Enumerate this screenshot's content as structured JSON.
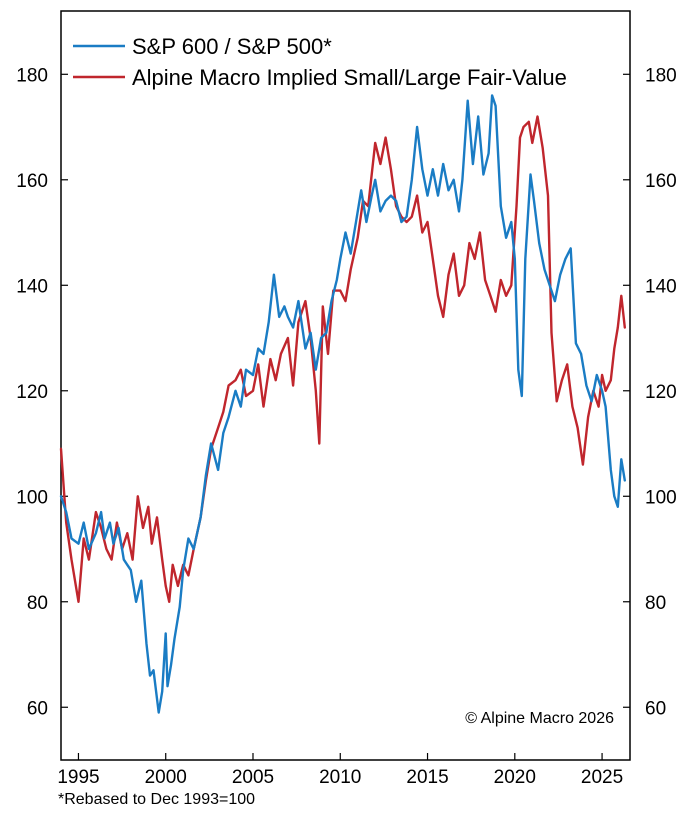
{
  "chart_data": {
    "type": "line",
    "title": "",
    "xlabel": "",
    "ylabel": "",
    "xlim": [
      1994.0,
      2026.6
    ],
    "ylim": [
      50,
      192
    ],
    "x_ticks": [
      1995,
      2000,
      2005,
      2010,
      2015,
      2020,
      2025
    ],
    "y_ticks": [
      60,
      80,
      100,
      120,
      140,
      160,
      180
    ],
    "y_axis_both_sides": true,
    "grid": false,
    "legend_position": "top-left",
    "series": [
      {
        "name": "S&P 600 / S&P 500*",
        "color": "#1a7cc4",
        "x": [
          1994.0,
          1994.3,
          1994.6,
          1995.0,
          1995.3,
          1995.6,
          1996.0,
          1996.3,
          1996.5,
          1996.8,
          1997.0,
          1997.3,
          1997.6,
          1998.0,
          1998.3,
          1998.6,
          1998.9,
          1999.1,
          1999.3,
          1999.6,
          1999.8,
          2000.0,
          2000.1,
          2000.3,
          2000.5,
          2000.8,
          2001.0,
          2001.3,
          2001.6,
          2002.0,
          2002.3,
          2002.6,
          2003.0,
          2003.3,
          2003.6,
          2004.0,
          2004.3,
          2004.6,
          2005.0,
          2005.3,
          2005.6,
          2005.9,
          2006.2,
          2006.5,
          2006.8,
          2007.0,
          2007.3,
          2007.6,
          2008.0,
          2008.3,
          2008.6,
          2008.9,
          2009.2,
          2009.5,
          2009.8,
          2010.0,
          2010.3,
          2010.6,
          2010.9,
          2011.2,
          2011.5,
          2011.8,
          2012.0,
          2012.3,
          2012.6,
          2012.9,
          2013.2,
          2013.5,
          2013.8,
          2014.1,
          2014.4,
          2014.7,
          2015.0,
          2015.3,
          2015.6,
          2015.9,
          2016.2,
          2016.5,
          2016.8,
          2017.0,
          2017.3,
          2017.6,
          2017.9,
          2018.2,
          2018.5,
          2018.7,
          2018.9,
          2019.2,
          2019.5,
          2019.8,
          2020.0,
          2020.2,
          2020.4,
          2020.6,
          2020.9,
          2021.1,
          2021.4,
          2021.7,
          2022.0,
          2022.3,
          2022.6,
          2022.9,
          2023.2,
          2023.5,
          2023.8,
          2024.1,
          2024.4,
          2024.7,
          2025.0,
          2025.2,
          2025.5,
          2025.7,
          2025.9,
          2026.1,
          2026.3
        ],
        "y": [
          100,
          97,
          92,
          91,
          95,
          90,
          93,
          97,
          92,
          95,
          91,
          94,
          88,
          86,
          80,
          84,
          72,
          66,
          67,
          59,
          63,
          74,
          64,
          68,
          73,
          79,
          86,
          92,
          90,
          96,
          104,
          110,
          105,
          112,
          115,
          120,
          117,
          124,
          123,
          128,
          127,
          133,
          142,
          134,
          136,
          134,
          132,
          137,
          128,
          131,
          124,
          130,
          131,
          137,
          141,
          145,
          150,
          146,
          152,
          158,
          152,
          157,
          160,
          154,
          156,
          157,
          156,
          152,
          153,
          160,
          170,
          162,
          157,
          162,
          157,
          163,
          158,
          160,
          154,
          160,
          175,
          163,
          172,
          161,
          165,
          176,
          174,
          155,
          149,
          152,
          145,
          124,
          119,
          145,
          161,
          156,
          148,
          143,
          140,
          137,
          142,
          145,
          147,
          129,
          127,
          121,
          118,
          123,
          120,
          117,
          105,
          100,
          98,
          107,
          103
        ]
      },
      {
        "name": "Alpine Macro Implied Small/Large Fair-Value",
        "color": "#c0262d",
        "x": [
          1994.0,
          1994.3,
          1994.6,
          1995.0,
          1995.3,
          1995.6,
          1996.0,
          1996.3,
          1996.6,
          1996.9,
          1997.2,
          1997.5,
          1997.8,
          1998.1,
          1998.4,
          1998.7,
          1999.0,
          1999.2,
          1999.5,
          1999.8,
          2000.0,
          2000.2,
          2000.4,
          2000.7,
          2001.0,
          2001.3,
          2001.6,
          2002.0,
          2002.3,
          2002.6,
          2003.0,
          2003.3,
          2003.6,
          2004.0,
          2004.3,
          2004.6,
          2005.0,
          2005.3,
          2005.6,
          2006.0,
          2006.3,
          2006.6,
          2007.0,
          2007.3,
          2007.6,
          2008.0,
          2008.3,
          2008.6,
          2008.8,
          2009.0,
          2009.3,
          2009.6,
          2010.0,
          2010.3,
          2010.6,
          2011.0,
          2011.3,
          2011.6,
          2012.0,
          2012.3,
          2012.6,
          2012.9,
          2013.2,
          2013.5,
          2013.8,
          2014.1,
          2014.4,
          2014.7,
          2015.0,
          2015.3,
          2015.6,
          2015.9,
          2016.2,
          2016.5,
          2016.8,
          2017.1,
          2017.4,
          2017.7,
          2018.0,
          2018.3,
          2018.6,
          2018.9,
          2019.2,
          2019.5,
          2019.8,
          2020.1,
          2020.3,
          2020.5,
          2020.8,
          2021.0,
          2021.3,
          2021.6,
          2021.9,
          2022.1,
          2022.4,
          2022.7,
          2023.0,
          2023.3,
          2023.6,
          2023.9,
          2024.2,
          2024.5,
          2024.8,
          2025.0,
          2025.2,
          2025.5,
          2025.7,
          2025.9,
          2026.1,
          2026.3
        ],
        "y": [
          109,
          95,
          88,
          80,
          92,
          88,
          97,
          94,
          90,
          88,
          95,
          90,
          93,
          88,
          100,
          94,
          98,
          91,
          96,
          88,
          83,
          80,
          87,
          83,
          87,
          85,
          90,
          96,
          103,
          109,
          113,
          116,
          121,
          122,
          124,
          119,
          120,
          125,
          117,
          126,
          122,
          127,
          130,
          121,
          133,
          137,
          130,
          120,
          110,
          136,
          127,
          139,
          139,
          137,
          143,
          149,
          156,
          155,
          167,
          163,
          168,
          162,
          155,
          153,
          152,
          153,
          157,
          150,
          152,
          145,
          138,
          134,
          142,
          146,
          138,
          140,
          148,
          145,
          150,
          141,
          138,
          135,
          141,
          138,
          140,
          155,
          168,
          170,
          171,
          167,
          172,
          166,
          157,
          131,
          118,
          122,
          125,
          117,
          113,
          106,
          115,
          120,
          117,
          123,
          120,
          122,
          128,
          132,
          138,
          132
        ]
      }
    ],
    "annotations": {
      "copyright": "© Alpine Macro 2026",
      "footnote": "*Rebased to Dec 1993=100"
    }
  }
}
